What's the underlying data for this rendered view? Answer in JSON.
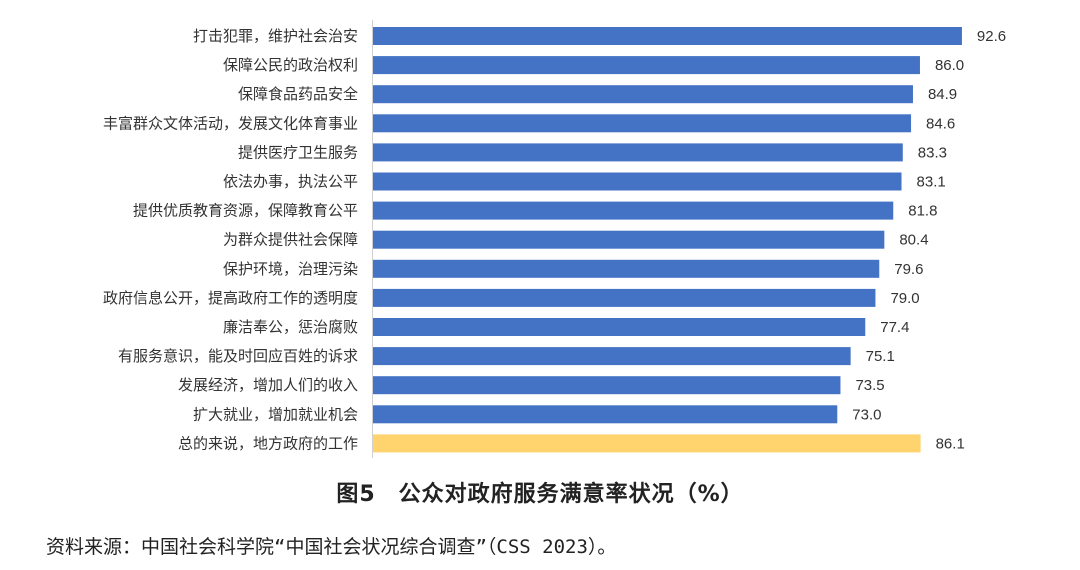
{
  "chart_data": {
    "type": "bar",
    "orientation": "horizontal",
    "title": "图5　公众对政府服务满意率状况（%）",
    "source": "资料来源：中国社会科学院“中国社会状况综合调查”（CSS 2023）。",
    "categories": [
      "打击犯罪，维护社会治安",
      "保障公民的政治权利",
      "保障食品药品安全",
      "丰富群众文体活动，发展文化体育事业",
      "提供医疗卫生服务",
      "依法办事，执法公平",
      "提供优质教育资源，保障教育公平",
      "为群众提供社会保障",
      "保护环境，治理污染",
      "政府信息公开，提高政府工作的透明度",
      "廉洁奉公，惩治腐败",
      "有服务意识，能及时回应百姓的诉求",
      "发展经济，增加人们的收入",
      "扩大就业，增加就业机会",
      "总的来说，地方政府的工作"
    ],
    "values": [
      92.6,
      86.0,
      84.9,
      84.6,
      83.3,
      83.1,
      81.8,
      80.4,
      79.6,
      79.0,
      77.4,
      75.1,
      73.5,
      73.0,
      86.1
    ],
    "value_labels": [
      "92.6",
      "86.0",
      "84.9",
      "84.6",
      "83.3",
      "83.1",
      "81.8",
      "80.4",
      "79.6",
      "79.0",
      "77.4",
      "75.1",
      "73.5",
      "73.0",
      "86.1"
    ],
    "xlim": [
      0,
      100
    ],
    "colors": {
      "default": "#4472C4",
      "highlight": "#FFD36E"
    },
    "highlight_index": 14,
    "grid": false
  }
}
